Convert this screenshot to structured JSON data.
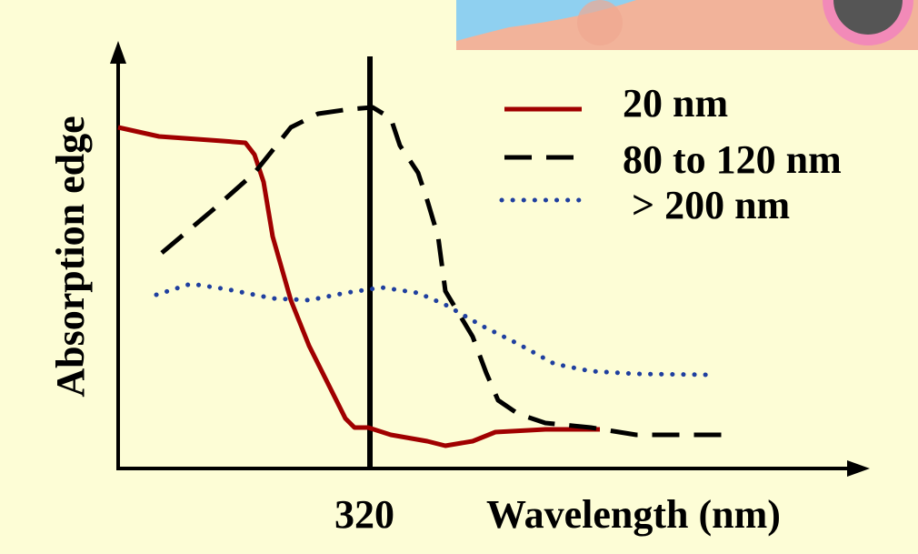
{
  "chart_data": {
    "type": "line",
    "ylabel": "Absorption edge",
    "xlabel": "Wavelength (nm)",
    "marker": 320,
    "series": [
      {
        "name": "20 nm",
        "color": "#a00000"
      },
      {
        "name": "80 to 120 nm",
        "color": "#000000"
      },
      {
        "name": "> 200 nm",
        "color": "#1f3f9f"
      }
    ]
  }
}
